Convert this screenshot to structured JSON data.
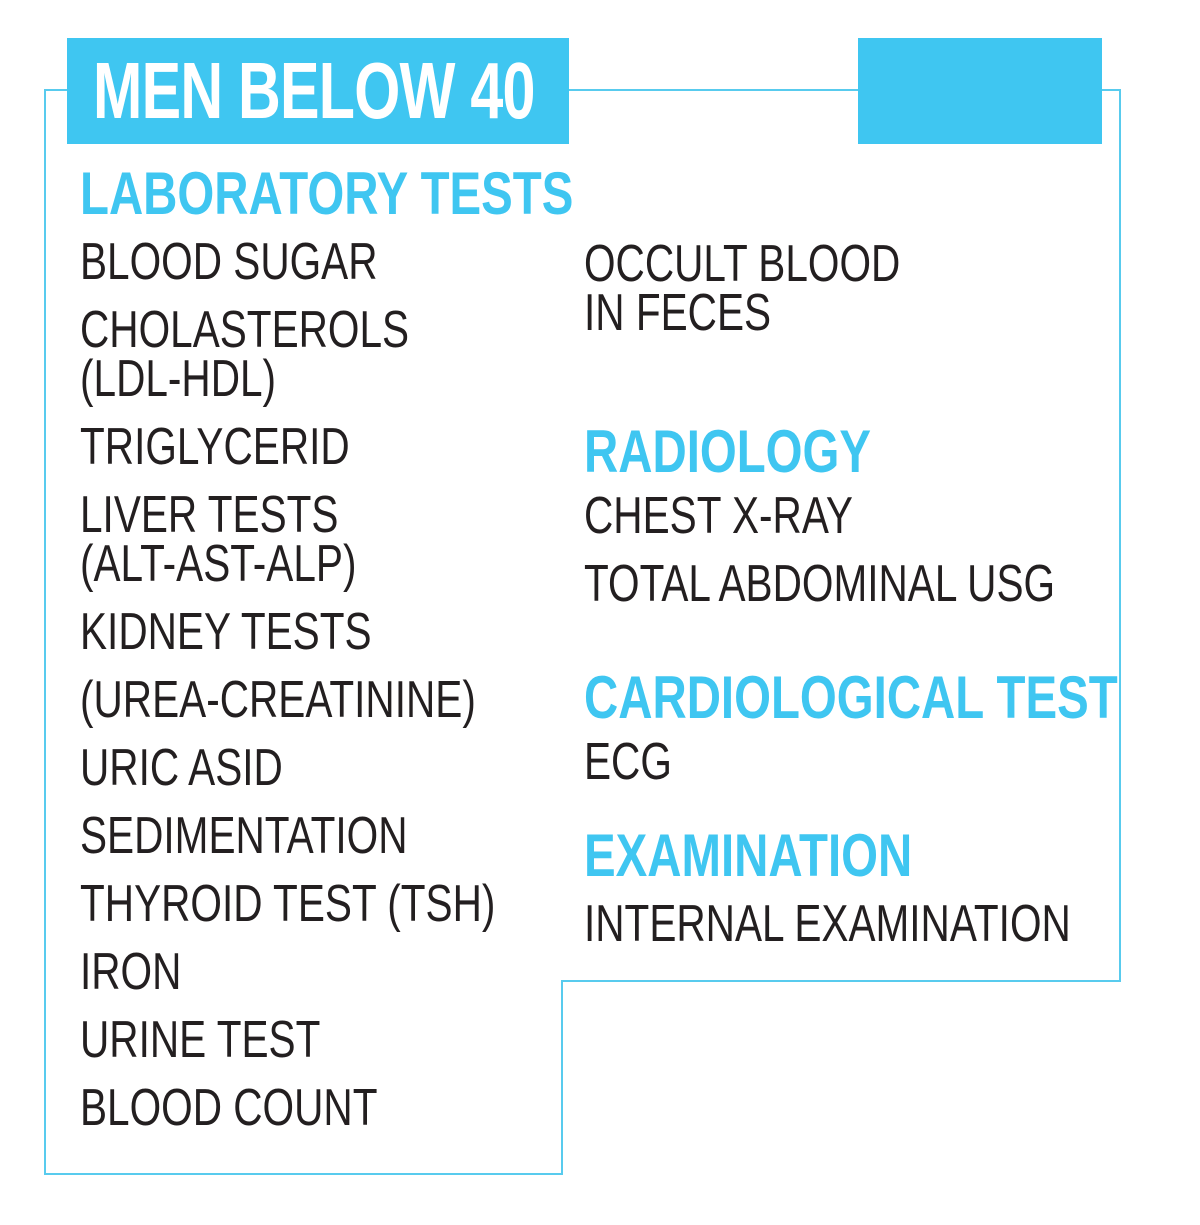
{
  "header": {
    "title": "MEN BELOW 40"
  },
  "colors": {
    "accent": "#3fc6f1",
    "text": "#231f20",
    "frame_line": "#58cbee"
  },
  "left_column": {
    "heading": "LABORATORY TESTS",
    "items": [
      "BLOOD SUGAR",
      "CHOLASTEROLS\n(LDL-HDL)",
      "TRIGLYCERID",
      "LIVER TESTS\n(ALT-AST-ALP)",
      "KIDNEY TESTS",
      "(UREA-CREATININE)",
      "URIC ASID",
      "SEDIMENTATION",
      "THYROID TEST (TSH)",
      "IRON",
      "URINE TEST",
      "BLOOD COUNT"
    ]
  },
  "right_column": {
    "lab_continued": [
      "OCCULT BLOOD\nIN FECES"
    ],
    "radiology": {
      "heading": "RADIOLOGY",
      "items": [
        "CHEST X-RAY",
        "TOTAL ABDOMINAL USG"
      ]
    },
    "cardiology": {
      "heading": "CARDIOLOGICAL TEST",
      "items": [
        "ECG"
      ]
    },
    "examination": {
      "heading": "EXAMINATION",
      "items": [
        "INTERNAL EXAMINATION"
      ]
    }
  }
}
